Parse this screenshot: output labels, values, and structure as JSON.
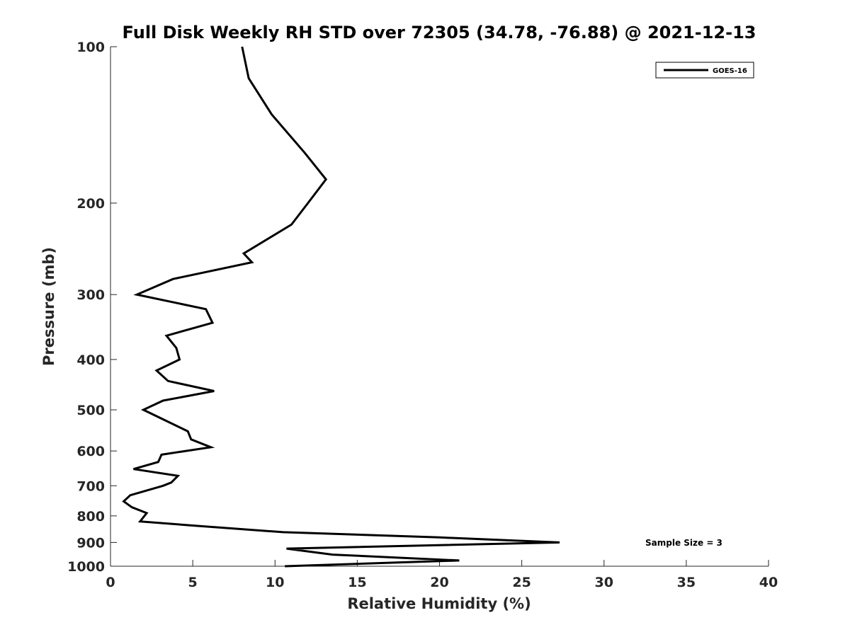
{
  "chart_data": {
    "type": "line",
    "title": "Full Disk Weekly RH STD over 72305 (34.78, -76.88) @ 2021-12-13",
    "xlabel": "Relative Humidity (%)",
    "ylabel": "Pressure (mb)",
    "xlim": [
      0,
      40
    ],
    "ylim": [
      100,
      1000
    ],
    "yscale": "log",
    "y_reversed": true,
    "grid": false,
    "legend_position": "top-right",
    "x_ticks": [
      "0",
      "5",
      "10",
      "15",
      "20",
      "25",
      "30",
      "35",
      "40"
    ],
    "y_ticks": [
      "100",
      "200",
      "300",
      "400",
      "500",
      "600",
      "700",
      "800",
      "900",
      "1000"
    ],
    "series": [
      {
        "name": "GOES-16",
        "color": "#000000",
        "points": [
          [
            8.0,
            100
          ],
          [
            8.4,
            115
          ],
          [
            9.8,
            135
          ],
          [
            11.8,
            160
          ],
          [
            13.1,
            180
          ],
          [
            12.0,
            200
          ],
          [
            11.0,
            220
          ],
          [
            8.1,
            250
          ],
          [
            8.6,
            260
          ],
          [
            3.8,
            280
          ],
          [
            1.6,
            300
          ],
          [
            5.8,
            320
          ],
          [
            6.2,
            340
          ],
          [
            3.4,
            360
          ],
          [
            4.0,
            380
          ],
          [
            4.2,
            400
          ],
          [
            2.8,
            420
          ],
          [
            3.5,
            440
          ],
          [
            6.3,
            460
          ],
          [
            3.2,
            480
          ],
          [
            2.0,
            500
          ],
          [
            4.7,
            550
          ],
          [
            4.9,
            570
          ],
          [
            6.1,
            590
          ],
          [
            3.1,
            610
          ],
          [
            3.0,
            620
          ],
          [
            2.9,
            630
          ],
          [
            1.4,
            650
          ],
          [
            4.1,
            670
          ],
          [
            3.7,
            690
          ],
          [
            3.2,
            700
          ],
          [
            1.2,
            730
          ],
          [
            0.8,
            750
          ],
          [
            1.3,
            770
          ],
          [
            2.2,
            790
          ],
          [
            1.8,
            820
          ],
          [
            5.0,
            835
          ],
          [
            10.5,
            860
          ],
          [
            20.0,
            880
          ],
          [
            27.3,
            900
          ],
          [
            10.7,
            925
          ],
          [
            13.5,
            950
          ],
          [
            21.2,
            975
          ],
          [
            10.6,
            1000
          ]
        ]
      }
    ],
    "annotations": [
      {
        "text": "Sample Size = 3",
        "x": 35,
        "y": 900
      }
    ]
  }
}
